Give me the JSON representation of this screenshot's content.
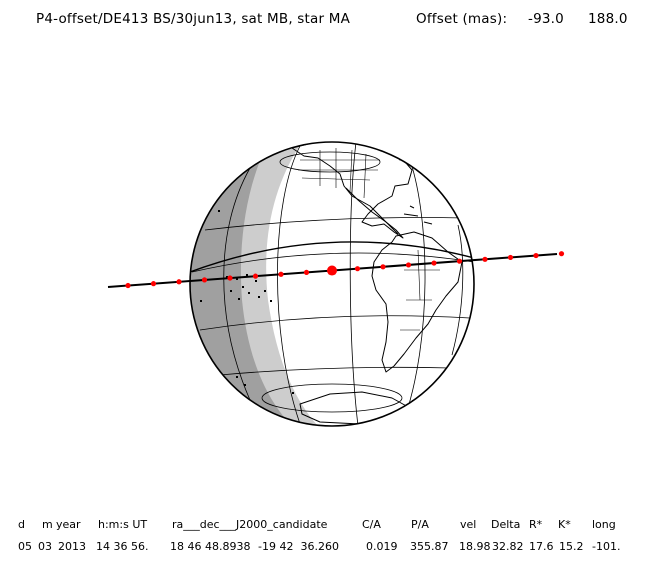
{
  "header": {
    "title": "P4-offset/DE413 BS/30jun13, sat MB, star MA",
    "offset_label": "Offset (mas):",
    "offset_x": "-93.0",
    "offset_y": "188.0"
  },
  "table": {
    "columns": [
      "d",
      "m",
      "year",
      "h:m:s UT",
      "ra___dec___J2000_candidate",
      "C/A",
      "P/A",
      "vel",
      "Delta",
      "R*",
      "K*",
      "long"
    ],
    "values": [
      "05",
      "03",
      "2013",
      "14 36 56.",
      "18 46 48.8938",
      "-19 42  36.260",
      "0.019",
      "355.87",
      "18.98",
      "32.82",
      "17.6",
      "15.2",
      "-101."
    ]
  },
  "colors": {
    "night": "#a0a0a0",
    "twilight": "#cdcdcd",
    "track": "#000000",
    "track_points": "#ff0000"
  }
}
